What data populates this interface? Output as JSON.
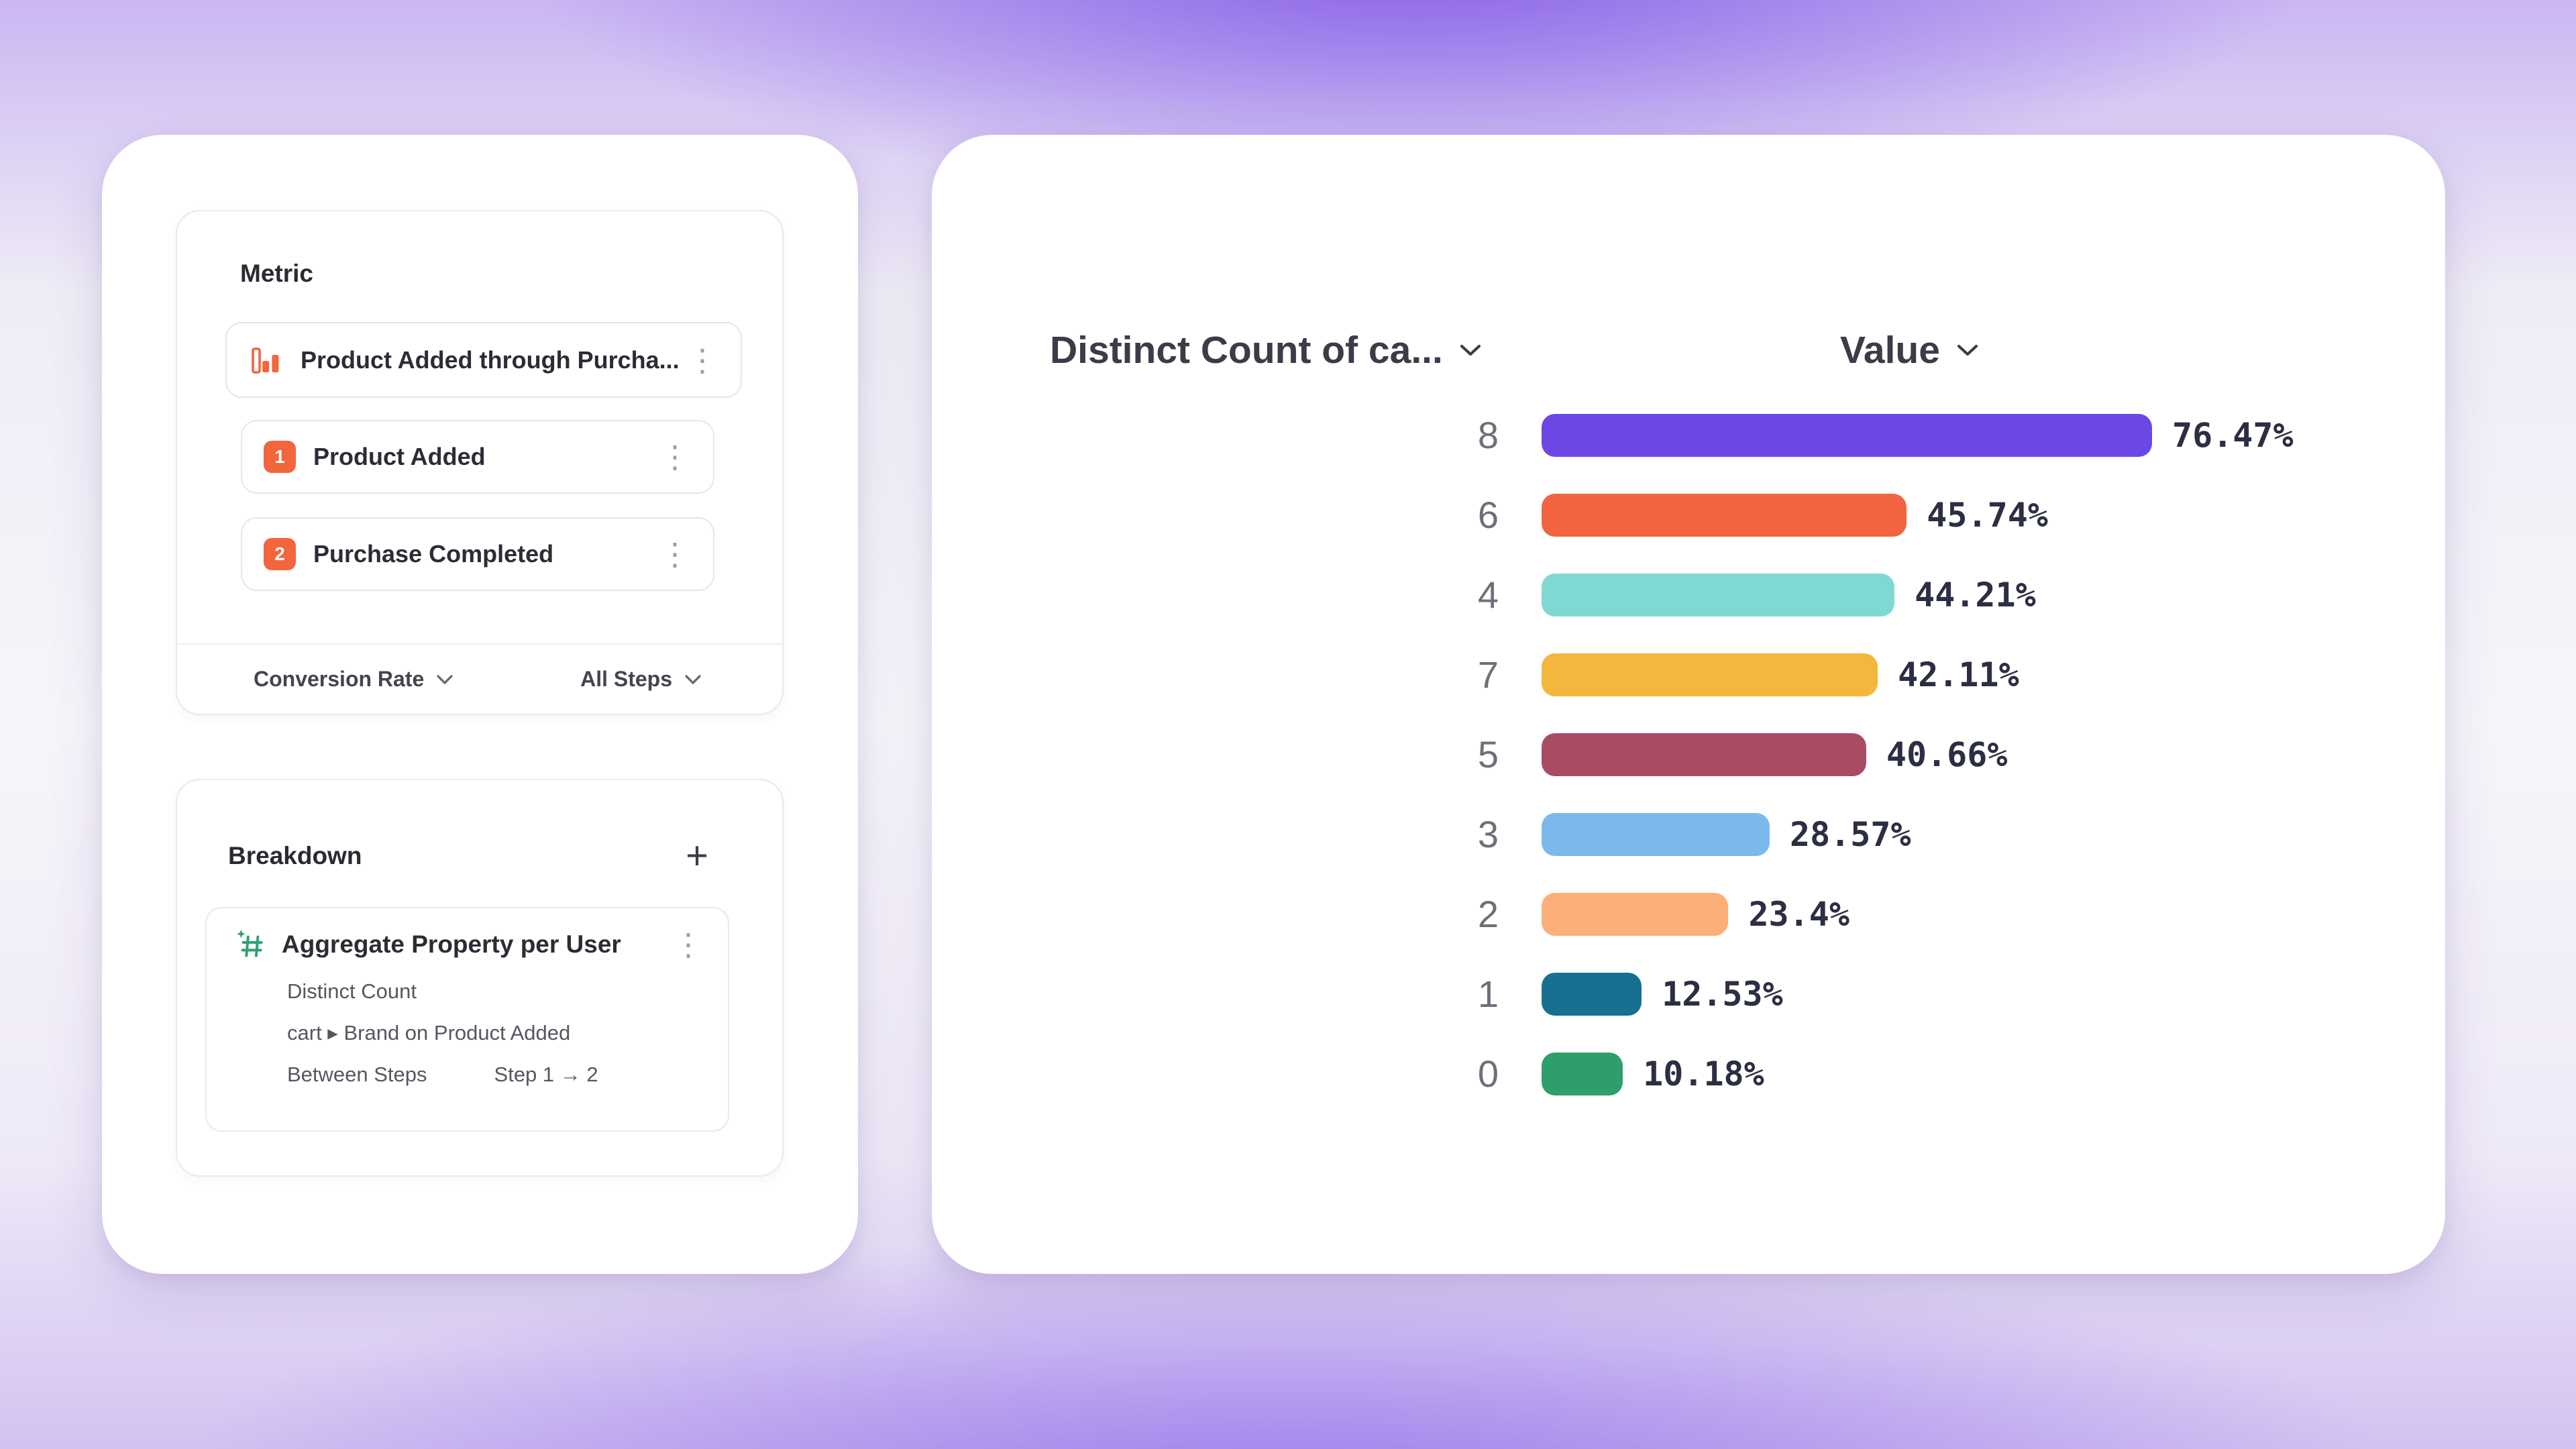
{
  "colors": {
    "accent_orange": "#F2653D",
    "icon_green": "#2FA271",
    "background_purple": "#7C53E6",
    "card_white": "#FFFFFF"
  },
  "metric": {
    "title": "Metric",
    "event_label": "Product Added through Purcha...",
    "steps": [
      {
        "index": "1",
        "label": "Product Added"
      },
      {
        "index": "2",
        "label": "Purchase Completed"
      }
    ],
    "measure_label": "Conversion Rate",
    "steps_label": "All Steps"
  },
  "breakdown": {
    "title": "Breakdown",
    "add_label": "+",
    "item_label": "Aggregate Property per User",
    "aggregation": "Distinct Count",
    "property": "cart ▸ Brand on Product Added",
    "between_label": "Between Steps",
    "step_range": "Step 1 → 2"
  },
  "chart_data": {
    "type": "bar",
    "orientation": "horizontal",
    "title": "",
    "col1_label": "Distinct Count of ca...",
    "col2_label": "Value",
    "categories": [
      "8",
      "6",
      "4",
      "7",
      "5",
      "3",
      "2",
      "1",
      "0"
    ],
    "values": [
      76.47,
      45.74,
      44.21,
      42.11,
      40.66,
      28.57,
      23.4,
      12.53,
      10.18
    ],
    "value_labels": [
      "76.47%",
      "45.74%",
      "44.21%",
      "42.11%",
      "40.66%",
      "28.57%",
      "23.4%",
      "12.53%",
      "10.18%"
    ],
    "bar_colors": [
      "#6C47E6",
      "#F2633F",
      "#7FD9D2",
      "#F4B63C",
      "#A84B63",
      "#7BB9EC",
      "#FAB078",
      "#17708F",
      "#2E9F6A"
    ],
    "xlim": [
      0,
      100
    ],
    "grid": false,
    "legend": "none"
  }
}
